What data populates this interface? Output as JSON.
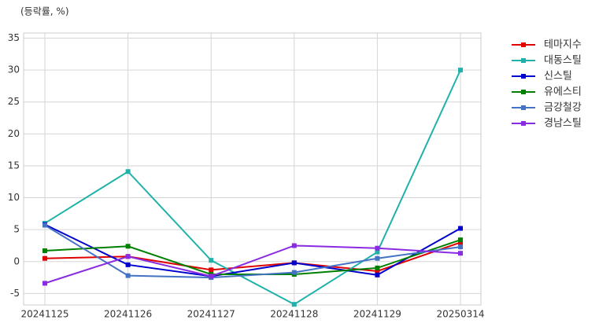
{
  "chart_data": {
    "type": "line",
    "ylabel": "(등락률, %)",
    "categories": [
      "20241125",
      "20241126",
      "20241127",
      "20241128",
      "20241129",
      "20250314"
    ],
    "series": [
      {
        "name": "테마지수",
        "color": "#e00000",
        "values": [
          0.5,
          0.8,
          -1.3,
          -0.2,
          -1.5,
          3.0
        ]
      },
      {
        "name": "대동스틸",
        "color": "#20b2aa",
        "values": [
          6.0,
          14.1,
          0.2,
          -6.7,
          1.5,
          30.0
        ]
      },
      {
        "name": "신스틸",
        "color": "#0000cd",
        "values": [
          5.8,
          -0.5,
          -2.3,
          -0.2,
          -2.1,
          5.2
        ]
      },
      {
        "name": "유에스티",
        "color": "#008000",
        "values": [
          1.7,
          2.4,
          -2.0,
          -2.0,
          -1.0,
          3.4
        ]
      },
      {
        "name": "금강철강",
        "color": "#4472c4",
        "values": [
          5.7,
          -2.2,
          -2.5,
          -1.7,
          0.5,
          2.3
        ]
      },
      {
        "name": "경남스틸",
        "color": "#8a2be2",
        "values": [
          -3.4,
          0.8,
          -2.3,
          2.5,
          2.1,
          1.3
        ]
      }
    ],
    "ylim": [
      -6.8,
      35.8
    ],
    "yticks": [
      -5,
      0,
      5,
      10,
      15,
      20,
      25,
      30,
      35
    ],
    "grid": true,
    "legend": "outside-right"
  }
}
